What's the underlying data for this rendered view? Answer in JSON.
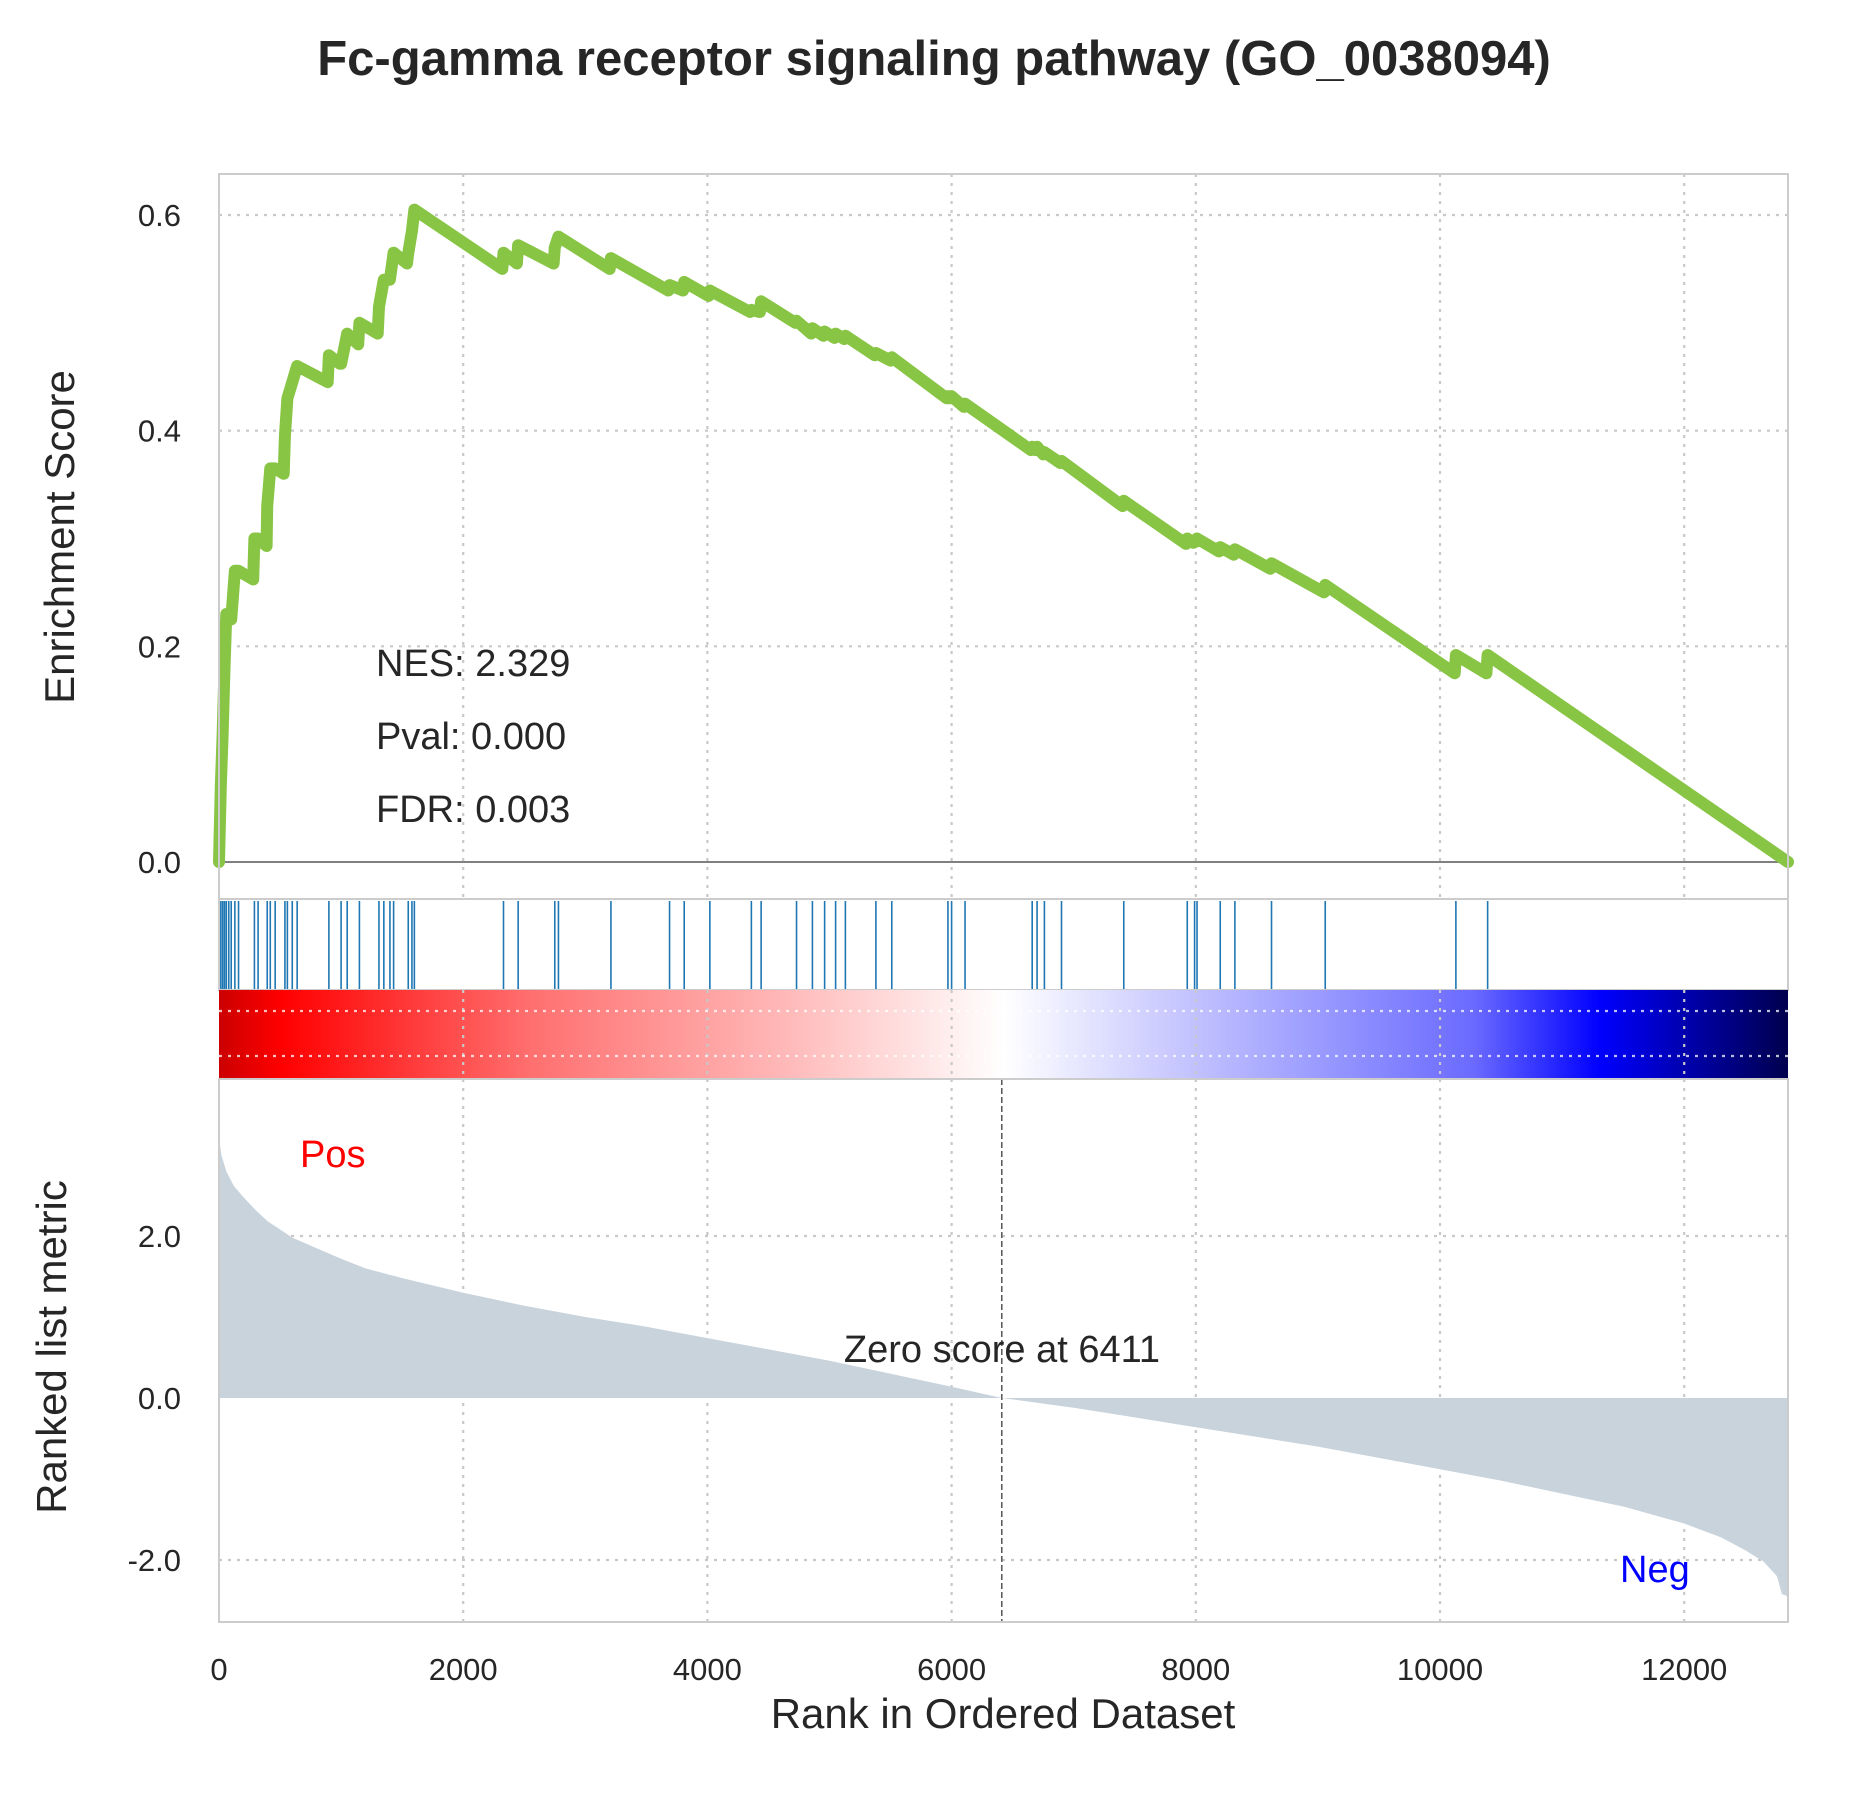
{
  "chart_data": {
    "type": "line",
    "title": "Fc-gamma receptor signaling pathway (GO_0038094)",
    "xlabel": "Rank in Ordered Dataset",
    "ylabel_top": "Enrichment Score",
    "ylabel_bottom": "Ranked list metric",
    "xlim": [
      0,
      12850
    ],
    "x_ticks": [
      0,
      2000,
      4000,
      6000,
      8000,
      10000,
      12000
    ],
    "es_ylim": [
      0,
      0.64
    ],
    "es_ticks": [
      "0.0",
      "0.2",
      "0.4",
      "0.6"
    ],
    "es_tick_values": [
      0.0,
      0.2,
      0.4,
      0.6
    ],
    "metric_ylim": [
      -2.45,
      3.3
    ],
    "metric_ticks": [
      "-2.0",
      "0.0",
      "2.0"
    ],
    "metric_tick_values": [
      -2.0,
      0.0,
      2.0
    ],
    "grid": true,
    "stats": {
      "nes": "NES: 2.329",
      "pval": "Pval: 0.000",
      "fdr": "FDR: 0.003"
    },
    "zero_score_label": "Zero score at 6411",
    "zero_score_rank": 6411,
    "pos_label": "Pos",
    "neg_label": "Neg",
    "colors": {
      "es_line": "#88c544",
      "hits": "#1f77b4",
      "metric_fill": "#c8d3dc",
      "pos": "#ff0000",
      "neg": "#0000ff"
    },
    "hit_ranks": [
      15,
      30,
      45,
      60,
      80,
      100,
      130,
      160,
      290,
      320,
      395,
      420,
      460,
      540,
      560,
      600,
      640,
      900,
      1000,
      1050,
      1150,
      1310,
      1350,
      1400,
      1430,
      1550,
      1580,
      1600,
      2330,
      2450,
      2750,
      2780,
      3210,
      3690,
      3810,
      4020,
      4360,
      4440,
      4730,
      4860,
      4960,
      5050,
      5130,
      5380,
      5510,
      5970,
      6000,
      6110,
      6660,
      6700,
      6760,
      6900,
      7410,
      7930,
      7990,
      8010,
      8200,
      8320,
      8620,
      9060,
      10130,
      10390
    ],
    "es_peak": {
      "rank": 1600,
      "score": 0.605
    },
    "es_points": [
      [
        0,
        0.0
      ],
      [
        15,
        0.07
      ],
      [
        30,
        0.12
      ],
      [
        45,
        0.18
      ],
      [
        60,
        0.23
      ],
      [
        80,
        0.225
      ],
      [
        100,
        0.225
      ],
      [
        130,
        0.27
      ],
      [
        160,
        0.27
      ],
      [
        280,
        0.262
      ],
      [
        290,
        0.3
      ],
      [
        320,
        0.3
      ],
      [
        390,
        0.293
      ],
      [
        395,
        0.33
      ],
      [
        420,
        0.365
      ],
      [
        460,
        0.365
      ],
      [
        530,
        0.36
      ],
      [
        540,
        0.395
      ],
      [
        560,
        0.43
      ],
      [
        600,
        0.445
      ],
      [
        640,
        0.46
      ],
      [
        890,
        0.445
      ],
      [
        900,
        0.47
      ],
      [
        990,
        0.462
      ],
      [
        1000,
        0.462
      ],
      [
        1050,
        0.49
      ],
      [
        1140,
        0.48
      ],
      [
        1150,
        0.5
      ],
      [
        1300,
        0.49
      ],
      [
        1310,
        0.515
      ],
      [
        1350,
        0.54
      ],
      [
        1400,
        0.54
      ],
      [
        1430,
        0.565
      ],
      [
        1540,
        0.555
      ],
      [
        1550,
        0.565
      ],
      [
        1580,
        0.585
      ],
      [
        1600,
        0.605
      ],
      [
        2320,
        0.55
      ],
      [
        2330,
        0.565
      ],
      [
        2440,
        0.555
      ],
      [
        2450,
        0.572
      ],
      [
        2740,
        0.555
      ],
      [
        2750,
        0.57
      ],
      [
        2780,
        0.58
      ],
      [
        3200,
        0.55
      ],
      [
        3210,
        0.56
      ],
      [
        3680,
        0.53
      ],
      [
        3690,
        0.535
      ],
      [
        3800,
        0.53
      ],
      [
        3810,
        0.538
      ],
      [
        4010,
        0.525
      ],
      [
        4020,
        0.53
      ],
      [
        4350,
        0.51
      ],
      [
        4360,
        0.512
      ],
      [
        4430,
        0.51
      ],
      [
        4440,
        0.52
      ],
      [
        4720,
        0.5
      ],
      [
        4730,
        0.502
      ],
      [
        4850,
        0.49
      ],
      [
        4860,
        0.495
      ],
      [
        4950,
        0.488
      ],
      [
        4960,
        0.492
      ],
      [
        5040,
        0.486
      ],
      [
        5050,
        0.49
      ],
      [
        5120,
        0.485
      ],
      [
        5130,
        0.488
      ],
      [
        5370,
        0.47
      ],
      [
        5380,
        0.472
      ],
      [
        5500,
        0.465
      ],
      [
        5510,
        0.468
      ],
      [
        5960,
        0.43
      ],
      [
        5970,
        0.432
      ],
      [
        5990,
        0.43
      ],
      [
        6000,
        0.432
      ],
      [
        6100,
        0.422
      ],
      [
        6110,
        0.425
      ],
      [
        6650,
        0.382
      ],
      [
        6660,
        0.385
      ],
      [
        6690,
        0.382
      ],
      [
        6700,
        0.385
      ],
      [
        6750,
        0.378
      ],
      [
        6760,
        0.38
      ],
      [
        6890,
        0.37
      ],
      [
        6900,
        0.372
      ],
      [
        7400,
        0.33
      ],
      [
        7410,
        0.335
      ],
      [
        7920,
        0.295
      ],
      [
        7930,
        0.3
      ],
      [
        7980,
        0.296
      ],
      [
        7990,
        0.298
      ],
      [
        8000,
        0.297
      ],
      [
        8010,
        0.3
      ],
      [
        8190,
        0.288
      ],
      [
        8200,
        0.292
      ],
      [
        8310,
        0.285
      ],
      [
        8320,
        0.29
      ],
      [
        8610,
        0.272
      ],
      [
        8620,
        0.277
      ],
      [
        9050,
        0.25
      ],
      [
        9060,
        0.257
      ],
      [
        10120,
        0.175
      ],
      [
        10130,
        0.192
      ],
      [
        10380,
        0.175
      ],
      [
        10390,
        0.192
      ],
      [
        12850,
        0.0
      ]
    ],
    "metric_curve": [
      [
        0,
        3.2
      ],
      [
        20,
        3.0
      ],
      [
        60,
        2.8
      ],
      [
        120,
        2.62
      ],
      [
        200,
        2.48
      ],
      [
        300,
        2.32
      ],
      [
        400,
        2.18
      ],
      [
        500,
        2.08
      ],
      [
        600,
        1.98
      ],
      [
        800,
        1.85
      ],
      [
        1000,
        1.72
      ],
      [
        1200,
        1.6
      ],
      [
        1500,
        1.48
      ],
      [
        2000,
        1.3
      ],
      [
        2500,
        1.14
      ],
      [
        3000,
        1.0
      ],
      [
        3500,
        0.88
      ],
      [
        4000,
        0.74
      ],
      [
        4500,
        0.6
      ],
      [
        5000,
        0.46
      ],
      [
        5500,
        0.3
      ],
      [
        6000,
        0.14
      ],
      [
        6411,
        0.0
      ],
      [
        7000,
        -0.12
      ],
      [
        7500,
        -0.24
      ],
      [
        8000,
        -0.36
      ],
      [
        8500,
        -0.48
      ],
      [
        9000,
        -0.6
      ],
      [
        9500,
        -0.74
      ],
      [
        10000,
        -0.88
      ],
      [
        10500,
        -1.02
      ],
      [
        11000,
        -1.18
      ],
      [
        11500,
        -1.34
      ],
      [
        12000,
        -1.55
      ],
      [
        12300,
        -1.72
      ],
      [
        12500,
        -1.88
      ],
      [
        12650,
        -2.02
      ],
      [
        12760,
        -2.2
      ],
      [
        12800,
        -2.42
      ],
      [
        12850,
        -2.45
      ]
    ]
  }
}
